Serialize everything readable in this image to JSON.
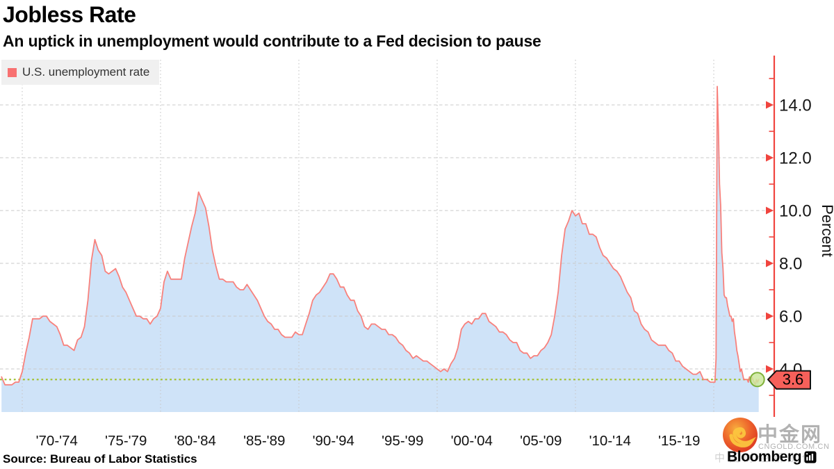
{
  "header": {
    "title": "Jobless Rate",
    "subtitle": "An uptick in unemployment would contribute to a Fed decision to pause"
  },
  "legend": {
    "label": "U.S. unemployment rate",
    "swatch_color": "#f87171"
  },
  "footer": {
    "source": "Source: Bureau of Labor Statistics",
    "brand": "Bloomberg"
  },
  "watermark": {
    "cn_name": "中金网",
    "domain": "CNGOLD.COM.CN",
    "tagline": "中国财经新媒体"
  },
  "chart_data": {
    "type": "area",
    "title": "Jobless Rate",
    "subtitle": "An uptick in unemployment would contribute to a Fed decision to pause",
    "ylabel": "Percent",
    "grid": true,
    "legend_position": "top-left",
    "ylim": [
      3,
      15
    ],
    "x_domain_years": [
      1968.5,
      2023.25
    ],
    "y_major_ticks": [
      {
        "value": 4,
        "label": "4.0"
      },
      {
        "value": 6,
        "label": "6.0"
      },
      {
        "value": 8,
        "label": "8.0"
      },
      {
        "value": 10,
        "label": "10.0"
      },
      {
        "value": 12,
        "label": "12.0"
      },
      {
        "value": 14,
        "label": "14.0"
      }
    ],
    "y_minor_ticks": [
      3,
      5,
      7,
      9,
      11,
      13,
      15
    ],
    "x_gridline_years": [
      1970,
      1980,
      1990,
      2000,
      2010,
      2020
    ],
    "x_tick_labels": [
      {
        "label": "'70-'74",
        "center_year": 1972.5
      },
      {
        "label": "'75-'79",
        "center_year": 1977.5
      },
      {
        "label": "'80-'84",
        "center_year": 1982.5
      },
      {
        "label": "'85-'89",
        "center_year": 1987.5
      },
      {
        "label": "'90-'94",
        "center_year": 1992.5
      },
      {
        "label": "'95-'99",
        "center_year": 1997.5
      },
      {
        "label": "'00-'04",
        "center_year": 2002.5
      },
      {
        "label": "'05-'09",
        "center_year": 2007.5
      },
      {
        "label": "'10-'14",
        "center_year": 2012.5
      },
      {
        "label": "'15-'19",
        "center_year": 2017.5
      }
    ],
    "series": [
      {
        "name": "U.S. unemployment rate",
        "line_color": "#f8817c",
        "fill_color": "#cfe3f8",
        "segments": [
          {
            "start": 1968.5,
            "step": 0.25,
            "values": [
              3.7,
              3.4,
              3.4,
              3.4,
              3.5,
              3.5,
              3.9,
              4.6,
              5.2,
              5.9,
              5.9,
              5.9,
              6.0,
              6.0,
              5.8,
              5.7,
              5.6,
              5.3,
              4.9,
              4.9,
              4.8,
              4.7,
              5.1,
              5.2,
              5.6,
              6.6,
              8.1,
              8.9,
              8.5,
              8.3,
              7.7,
              7.6,
              7.7,
              7.8,
              7.5,
              7.1,
              6.9,
              6.6,
              6.3,
              6.0,
              6.0,
              5.9,
              5.9,
              5.7,
              5.9,
              6.0,
              6.3,
              7.3,
              7.7,
              7.4,
              7.4,
              7.4,
              7.4,
              8.2,
              8.8,
              9.4,
              9.9,
              10.7,
              10.4,
              10.1,
              9.4,
              8.5,
              7.9,
              7.4,
              7.4,
              7.3,
              7.3,
              7.3,
              7.1,
              7.0,
              7.0,
              7.2,
              7.0,
              6.8,
              6.6,
              6.3,
              6.0,
              5.8,
              5.7,
              5.5,
              5.5,
              5.3,
              5.2,
              5.2,
              5.2,
              5.4,
              5.3,
              5.3,
              5.7,
              6.1,
              6.6,
              6.8,
              6.9,
              7.1,
              7.3,
              7.6,
              7.6,
              7.4,
              7.1,
              7.1,
              6.8,
              6.6,
              6.6,
              6.2,
              6.0,
              5.6,
              5.5,
              5.7,
              5.7,
              5.6,
              5.5,
              5.5,
              5.3,
              5.3,
              5.2,
              5.0,
              4.9,
              4.7,
              4.6,
              4.4,
              4.5,
              4.4,
              4.3,
              4.3,
              4.2,
              4.1,
              4.0,
              3.9,
              4.0,
              3.9,
              4.2,
              4.4,
              4.8,
              5.5,
              5.7,
              5.8,
              5.7,
              5.9,
              5.9,
              6.1,
              6.1,
              5.8,
              5.7,
              5.6,
              5.4,
              5.4,
              5.3,
              5.1,
              5.0,
              5.0,
              4.7,
              4.6,
              4.6,
              4.4,
              4.5,
              4.5,
              4.7,
              4.8,
              5.0,
              5.3,
              6.0,
              6.9,
              8.3,
              9.3,
              9.6,
              10.0,
              9.8,
              9.9,
              9.5,
              9.5,
              9.1,
              9.1,
              9.0,
              8.6,
              8.3,
              8.2,
              8.0,
              7.8,
              7.7,
              7.5,
              7.2,
              6.9,
              6.7,
              6.2,
              6.1,
              5.7,
              5.5,
              5.4,
              5.1,
              5.0,
              4.9,
              4.9,
              4.9,
              4.7,
              4.6,
              4.3,
              4.3,
              4.1,
              4.0,
              3.9,
              3.8,
              3.8,
              3.9,
              3.6,
              3.6,
              3.5
            ]
          },
          {
            "start": 2020.0,
            "step": 0.0833333,
            "values": [
              3.5,
              3.5,
              4.4,
              14.7,
              13.2,
              11.0,
              10.2,
              8.4,
              7.8,
              6.8,
              6.7,
              6.7,
              6.4,
              6.2,
              6.0,
              6.0,
              5.8,
              5.9,
              5.4,
              5.1,
              4.7,
              4.5,
              4.2,
              3.9,
              4.0,
              3.8,
              3.6,
              3.6,
              3.6,
              3.6,
              3.5,
              3.7,
              3.5,
              3.7,
              3.6,
              3.5,
              3.4,
              3.6,
              3.5,
              3.6
            ]
          }
        ]
      }
    ],
    "current_marker": {
      "t": 2023.25,
      "value": 3.6,
      "label": "3.6"
    },
    "colors": {
      "axis": "#f0443e",
      "grid": "#c9c9c9",
      "tick_label": "#161616",
      "marker_line": "#a6c43d",
      "marker_fill": "#cde79d",
      "marker_stroke": "#7fb13a",
      "tag_fill": "#f6605a",
      "tag_border": "#111111"
    }
  }
}
